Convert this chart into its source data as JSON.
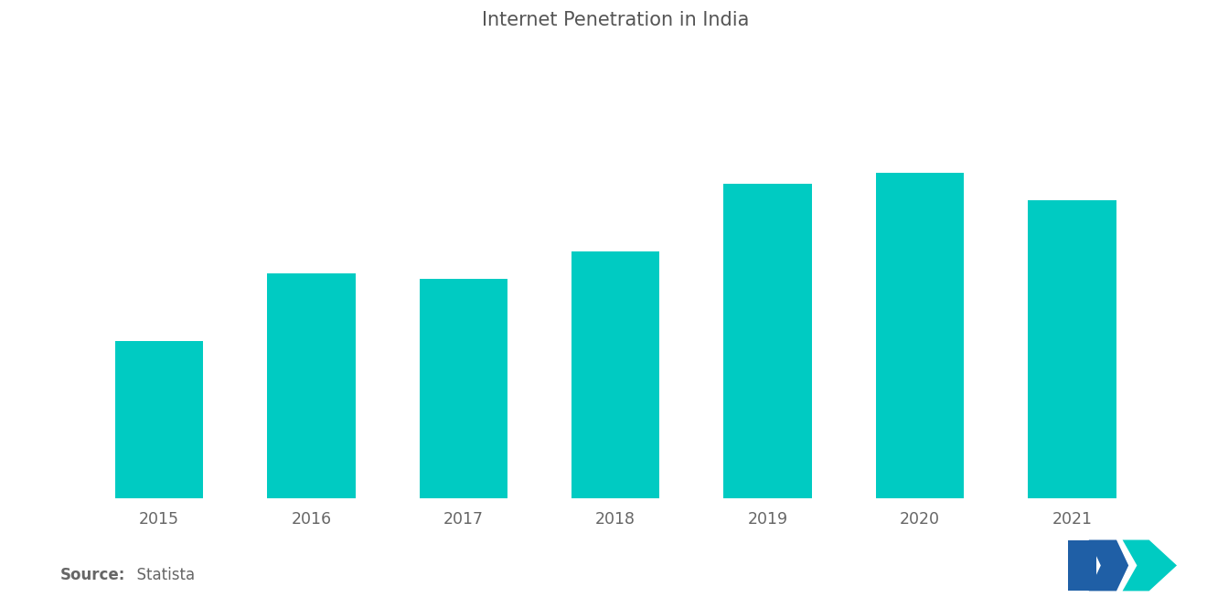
{
  "title": "Internet Penetration in India",
  "categories": [
    "2015",
    "2016",
    "2017",
    "2018",
    "2019",
    "2020",
    "2021"
  ],
  "values": [
    28,
    40,
    39,
    44,
    56,
    58,
    53
  ],
  "bar_color": "#00CBC2",
  "background_color": "#ffffff",
  "title_color": "#555555",
  "tick_color": "#666666",
  "source_bold": "Source:",
  "source_normal": "  Statista",
  "ylim": [
    0,
    80
  ],
  "bar_width": 0.58,
  "title_fontsize": 15,
  "tick_fontsize": 12.5,
  "source_fontsize": 12
}
